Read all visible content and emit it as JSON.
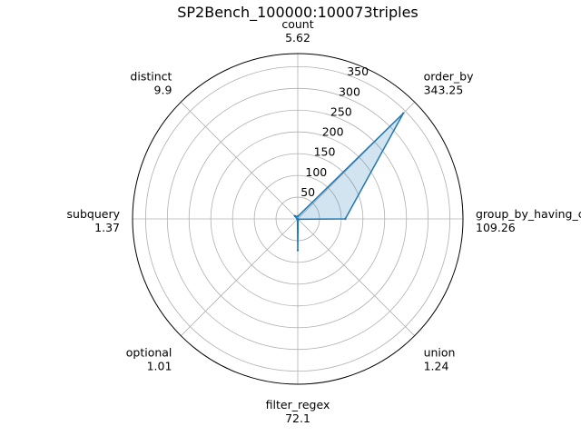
{
  "chart_data": {
    "type": "radar",
    "title": "SP2Bench_100000:100073triples",
    "categories": [
      "count",
      "order_by",
      "group_by_having_count_distinct",
      "union",
      "filter_regex",
      "optional",
      "subquery",
      "distinct"
    ],
    "values": [
      5.62,
      343.25,
      109.26,
      1.24,
      72.1,
      1.01,
      1.37,
      9.9
    ],
    "value_labels": [
      "5.62",
      "343.25",
      "109.26",
      "1.24",
      "72.1",
      "1.01",
      "1.37",
      "9.9"
    ],
    "rlim": [
      0,
      380
    ],
    "rticks": [
      50,
      100,
      150,
      200,
      250,
      300,
      350
    ],
    "rtick_labels": [
      "50",
      "100",
      "150",
      "200",
      "250",
      "300",
      "350"
    ],
    "grid": true,
    "legend": "none",
    "colors": {
      "line": "#1f77b4",
      "fill": "#1f77b4",
      "grid": "#b0b0b0",
      "frame": "#000000"
    }
  }
}
